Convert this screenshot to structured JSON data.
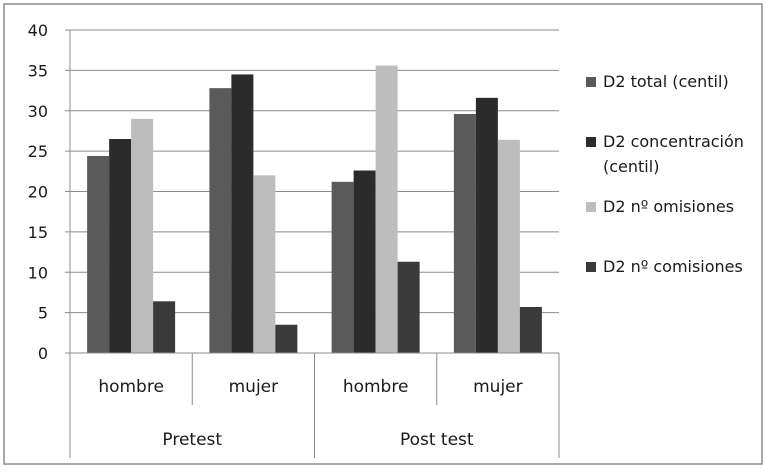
{
  "chart_data": {
    "type": "bar",
    "groups": [
      "Pretest",
      "Post test"
    ],
    "categories": [
      "hombre",
      "mujer",
      "hombre",
      "mujer"
    ],
    "series": [
      {
        "name": "D2 total (centil)",
        "color": "#5a5a5a",
        "values": [
          24.4,
          32.8,
          21.2,
          29.6
        ]
      },
      {
        "name": "D2 concentración (centil)",
        "color": "#2b2b2b",
        "values": [
          26.5,
          34.5,
          22.6,
          31.6
        ]
      },
      {
        "name": "D2 nº omisiones",
        "color": "#bdbdbd",
        "values": [
          29.0,
          22.0,
          35.6,
          26.4
        ]
      },
      {
        "name": "D2 nº comisiones",
        "color": "#3a3a3a",
        "values": [
          6.4,
          3.5,
          11.3,
          5.7
        ]
      }
    ],
    "ylim": [
      0,
      40
    ],
    "yticks": [
      0,
      5,
      10,
      15,
      20,
      25,
      30,
      35,
      40
    ],
    "grid": true,
    "legend_position": "right"
  }
}
